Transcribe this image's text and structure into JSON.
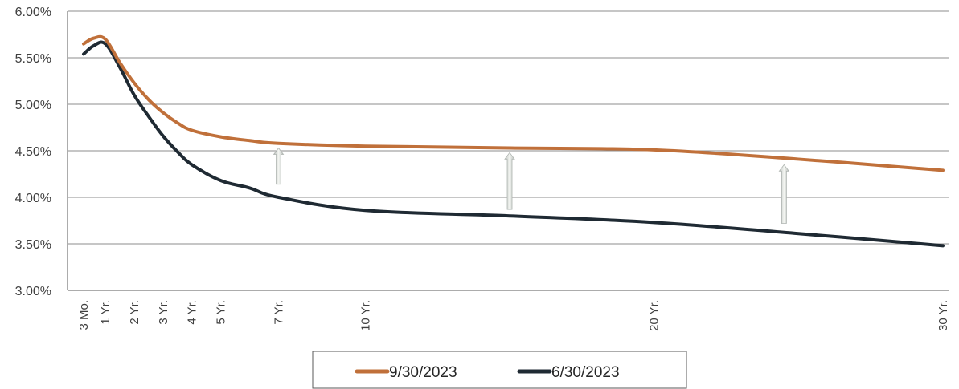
{
  "chart_data": {
    "type": "line",
    "title": "",
    "xlabel": "",
    "ylabel": "",
    "x_labels": [
      "3 Mo.",
      "1 Yr.",
      "2 Yr.",
      "3 Yr.",
      "4 Yr.",
      "5 Yr.",
      "7 Yr.",
      "10 Yr.",
      "20 Yr.",
      "30 Yr."
    ],
    "x_values_years": [
      0.25,
      1,
      2,
      3,
      4,
      5,
      7,
      10,
      20,
      30
    ],
    "y_ticks": [
      "3.00%",
      "3.50%",
      "4.00%",
      "4.50%",
      "5.00%",
      "5.50%",
      "6.00%"
    ],
    "y_tick_values": [
      3.0,
      3.5,
      4.0,
      4.5,
      5.0,
      5.5,
      6.0
    ],
    "ylim": [
      3.0,
      6.0
    ],
    "xlim": [
      0.25,
      30
    ],
    "grid": "horizontal",
    "legend_position": "bottom",
    "series": [
      {
        "name": "9/30/2023",
        "color": "#c0703a",
        "points": [
          [
            0.25,
            5.65
          ],
          [
            0.6,
            5.71
          ],
          [
            1,
            5.7
          ],
          [
            1.5,
            5.45
          ],
          [
            2,
            5.23
          ],
          [
            2.5,
            5.05
          ],
          [
            3,
            4.91
          ],
          [
            3.5,
            4.8
          ],
          [
            4,
            4.72
          ],
          [
            5,
            4.65
          ],
          [
            6,
            4.61
          ],
          [
            7,
            4.58
          ],
          [
            10,
            4.55
          ],
          [
            15,
            4.53
          ],
          [
            20,
            4.51
          ],
          [
            25,
            4.41
          ],
          [
            30,
            4.29
          ]
        ]
      },
      {
        "name": "6/30/2023",
        "color": "#1f2a33",
        "points": [
          [
            0.25,
            5.54
          ],
          [
            0.6,
            5.63
          ],
          [
            1,
            5.65
          ],
          [
            1.5,
            5.4
          ],
          [
            2,
            5.1
          ],
          [
            2.5,
            4.87
          ],
          [
            3,
            4.66
          ],
          [
            3.5,
            4.49
          ],
          [
            4,
            4.35
          ],
          [
            5,
            4.18
          ],
          [
            6,
            4.1
          ],
          [
            7,
            4.0
          ],
          [
            10,
            3.86
          ],
          [
            15,
            3.8
          ],
          [
            20,
            3.73
          ],
          [
            25,
            3.61
          ],
          [
            30,
            3.48
          ]
        ]
      }
    ],
    "arrows": [
      {
        "x": 7,
        "from": 4.14,
        "to": 4.53
      },
      {
        "x": 15,
        "from": 3.87,
        "to": 4.48
      },
      {
        "x": 24.5,
        "from": 3.72,
        "to": 4.35
      }
    ]
  }
}
